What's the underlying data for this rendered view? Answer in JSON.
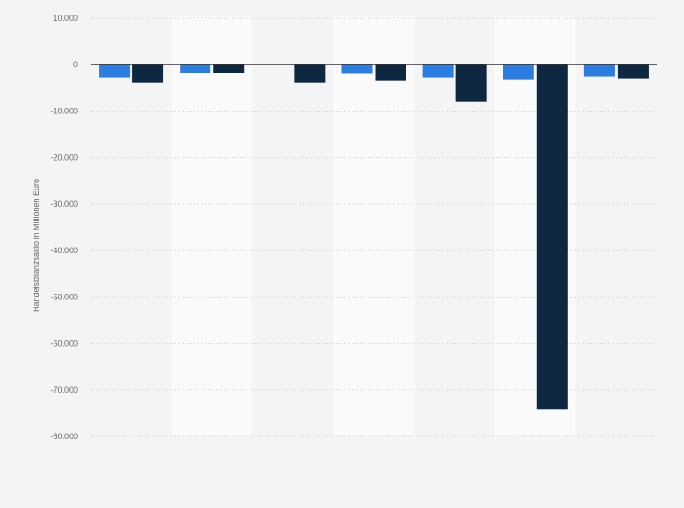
{
  "chart_data": {
    "type": "bar",
    "title": "",
    "xlabel": "",
    "ylabel": "Handelsbilanzsaldo in Millionen Euro",
    "ylim": [
      -80000,
      10000
    ],
    "yticks": [
      10000,
      0,
      -10000,
      -20000,
      -30000,
      -40000,
      -50000,
      -60000,
      -70000,
      -80000
    ],
    "ytick_labels": [
      "10.000",
      "0",
      "-10.000",
      "-20.000",
      "-30.000",
      "-40.000",
      "-50.000",
      "-60.000",
      "-70.000",
      "-80.000"
    ],
    "grid": true,
    "legend": "none",
    "groups": 7,
    "series": [
      {
        "color": "#2b7de0",
        "values": [
          -2800,
          -1800,
          200,
          -2000,
          -2800,
          -3200,
          -2600
        ]
      },
      {
        "color": "#0e2841",
        "values": [
          -3800,
          -1800,
          -3800,
          -3400,
          -7900,
          -74200,
          -3000
        ]
      }
    ],
    "band_colors": [
      "#f4f4f4",
      "#fafafa"
    ]
  }
}
